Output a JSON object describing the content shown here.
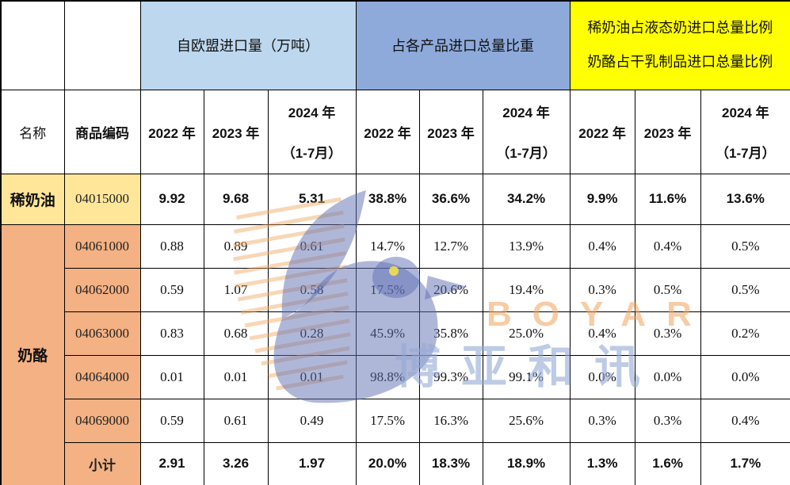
{
  "colors": {
    "light_blue": "#BDD7EE",
    "medium_blue": "#8EAADB",
    "yellow": "#FFFF00",
    "gold": "#FFE699",
    "orange": "#F4B183",
    "watermark_blue": "#5F6FB4",
    "watermark_orange": "#EFA75F",
    "watermark_eye_yellow": "#F4E04B"
  },
  "header": {
    "group1": "自欧盟进口量（万吨）",
    "group2": "占各产品进口总量比重",
    "group3_line1": "稀奶油占液态奶进口总量比例",
    "group3_line2": "奶酪占干乳制品进口总量比例",
    "name_col": "名称",
    "code_col": "商品编码",
    "year1": "2022 年",
    "year2": "2023 年",
    "year3_line1": "2024 年",
    "year3_line2": "（1-7月）"
  },
  "rows": [
    {
      "name": "稀奶油",
      "name_rowspan": 1,
      "name_bg": "c-gold",
      "code": "04015000",
      "code_bg": "c-gold",
      "bold": true,
      "values": [
        "9.92",
        "9.68",
        "5.31",
        "38.8%",
        "36.6%",
        "34.2%",
        "9.9%",
        "11.6%",
        "13.6%"
      ]
    },
    {
      "name": "奶酪",
      "name_rowspan": 6,
      "name_bg": "c-orange",
      "code": "04061000",
      "code_bg": "c-orange",
      "bold": false,
      "values": [
        "0.88",
        "0.89",
        "0.61",
        "14.7%",
        "12.7%",
        "13.9%",
        "0.4%",
        "0.4%",
        "0.5%"
      ]
    },
    {
      "code": "04062000",
      "code_bg": "c-orange",
      "bold": false,
      "values": [
        "0.59",
        "1.07",
        "0.58",
        "17.5%",
        "20.6%",
        "19.4%",
        "0.3%",
        "0.5%",
        "0.5%"
      ]
    },
    {
      "code": "04063000",
      "code_bg": "c-orange",
      "bold": false,
      "values": [
        "0.83",
        "0.68",
        "0.28",
        "45.9%",
        "35.8%",
        "25.0%",
        "0.4%",
        "0.3%",
        "0.2%"
      ]
    },
    {
      "code": "04064000",
      "code_bg": "c-orange",
      "bold": false,
      "values": [
        "0.01",
        "0.01",
        "0.01",
        "98.8%",
        "99.3%",
        "99.1%",
        "0.0%",
        "0.0%",
        "0.0%"
      ]
    },
    {
      "code": "04069000",
      "code_bg": "c-orange",
      "bold": false,
      "values": [
        "0.59",
        "0.61",
        "0.49",
        "17.5%",
        "16.3%",
        "25.6%",
        "0.3%",
        "0.3%",
        "0.4%"
      ]
    },
    {
      "code": "小计",
      "code_bg": "c-orange",
      "code_bold": true,
      "bold": true,
      "values": [
        "2.91",
        "3.26",
        "1.97",
        "20.0%",
        "18.3%",
        "18.9%",
        "1.3%",
        "1.6%",
        "1.7%"
      ]
    }
  ],
  "watermark": {
    "brand_en": "BOYAR",
    "brand_cn": "博亚和讯"
  }
}
